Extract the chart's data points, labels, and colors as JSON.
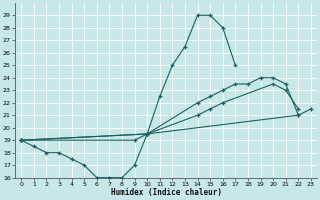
{
  "xlabel": "Humidex (Indice chaleur)",
  "xlim": [
    -0.5,
    23.5
  ],
  "ylim": [
    16,
    30
  ],
  "yticks": [
    16,
    17,
    18,
    19,
    20,
    21,
    22,
    23,
    24,
    25,
    26,
    27,
    28,
    29
  ],
  "xticks": [
    0,
    1,
    2,
    3,
    4,
    5,
    6,
    7,
    8,
    9,
    10,
    11,
    12,
    13,
    14,
    15,
    16,
    17,
    18,
    19,
    20,
    21,
    22,
    23
  ],
  "bg_color": "#c8e8e8",
  "grid_color": "#b0d8d8",
  "line_color": "#1a6060",
  "line1_x": [
    0,
    1,
    2,
    3,
    4,
    5,
    6,
    7,
    8,
    9,
    10,
    11,
    12,
    13,
    14,
    15,
    16,
    17
  ],
  "line1_y": [
    19,
    18.5,
    18,
    18,
    17.5,
    17,
    16,
    16,
    16,
    17,
    19.5,
    22.5,
    25,
    26.5,
    29,
    29,
    28,
    25
  ],
  "line2_x": [
    0,
    9,
    10,
    14,
    15,
    16,
    17,
    18,
    19,
    20,
    21,
    22
  ],
  "line2_y": [
    19,
    19,
    19.5,
    22,
    22.5,
    23,
    23.5,
    23.5,
    24,
    24,
    23.5,
    21
  ],
  "line3_x": [
    0,
    10,
    14,
    15,
    16,
    20,
    21,
    22
  ],
  "line3_y": [
    19,
    19.5,
    21,
    21.5,
    22,
    23.5,
    23,
    21.5
  ],
  "line4_x": [
    0,
    10,
    22,
    23
  ],
  "line4_y": [
    19,
    19.5,
    21,
    21.5
  ]
}
